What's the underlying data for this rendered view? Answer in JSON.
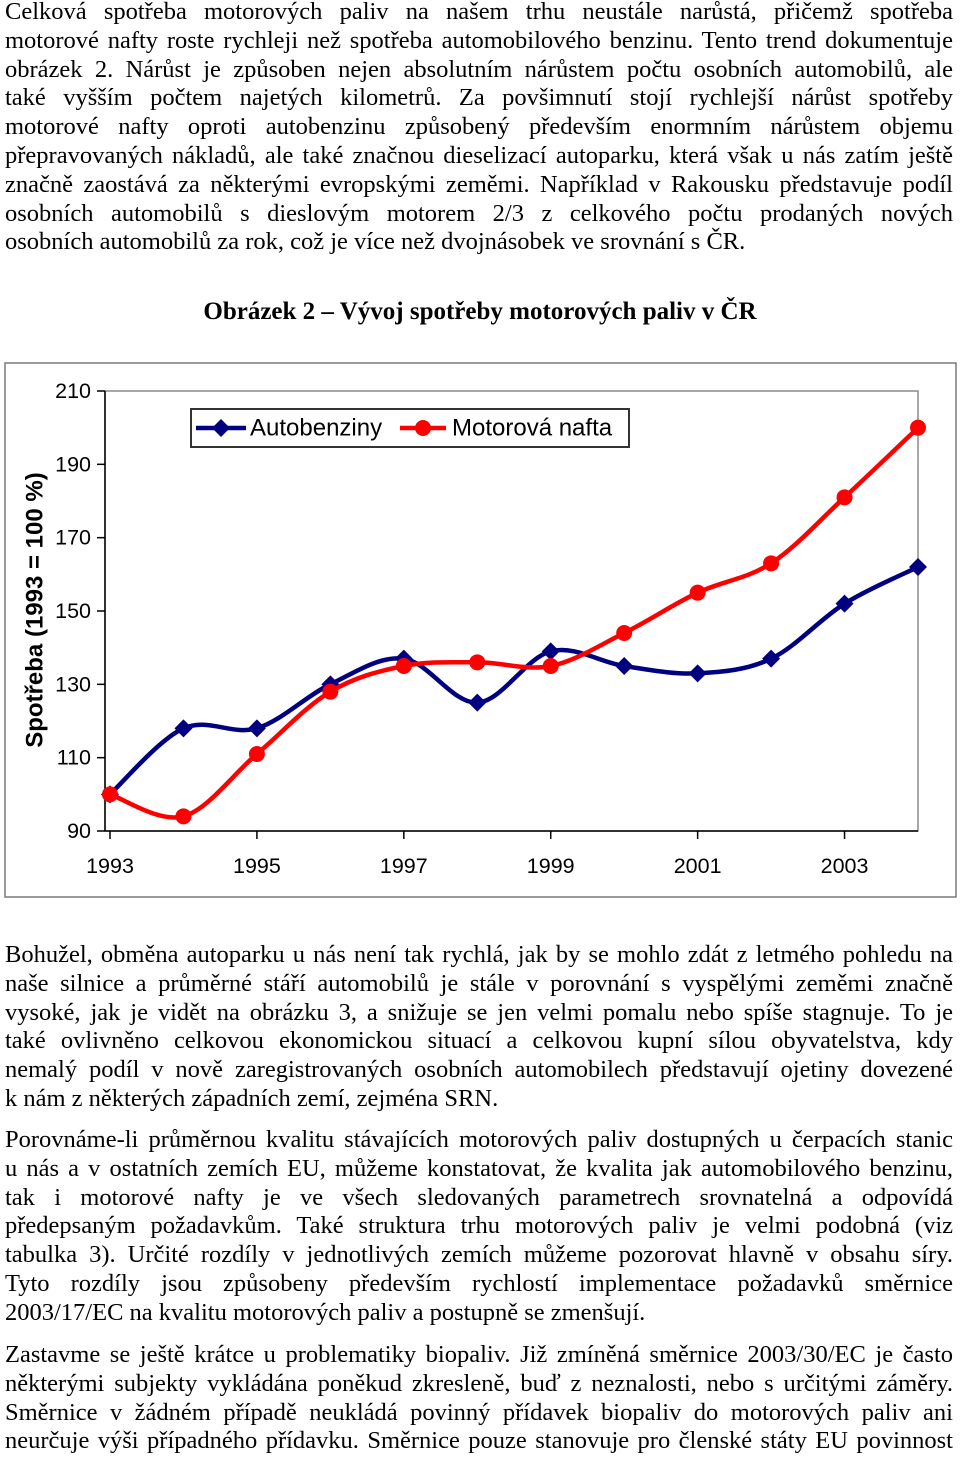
{
  "paragraphs": [
    {
      "lines": [
        "Celková spotřeba motorových paliv na našem trhu neustále narůstá, přičemž spotřeba",
        "motorové nafty roste rychleji než spotřeba automobilového benzinu. Tento trend dokumentuje",
        "obrázek 2. Nárůst je způsoben nejen absolutním nárůstem počtu osobních automobilů, ale",
        "také vyšším počtem najetých kilometrů. Za povšimnutí stojí rychlejší nárůst spotřeby",
        "motorové nafty oproti autobenzinu způsobený především enormním nárůstem objemu",
        "přepravovaných nákladů, ale také značnou dieselizací autoparku, která však u nás zatím ještě",
        "značně zaostává za některými evropskými zeměmi. Například v Rakousku představuje podíl",
        "osobních automobilů s dieslovým motorem 2/3 z celkového počtu prodaných nových",
        "osobních automobilů za rok, což je více než dvojnásobek ve srovnání s ČR."
      ]
    },
    {
      "lines": [
        "Bohužel, obměna autoparku u nás není tak rychlá, jak by se mohlo zdát z letmého pohledu na",
        "naše silnice a průměrné stáří automobilů je stále v porovnání s vyspělými zeměmi značně",
        "vysoké, jak je vidět na obrázku 3, a snižuje se jen velmi pomalu nebo spíše stagnuje. To je",
        "také ovlivněno celkovou ekonomickou situací a celkovou kupní sílou obyvatelstva, kdy",
        "nemalý podíl v nově zaregistrovaných osobních automobilech představují ojetiny dovezené",
        "k nám z některých západních zemí, zejména SRN."
      ]
    },
    {
      "lines": [
        "Porovnáme-li průměrnou kvalitu stávajících motorových paliv dostupných u čerpacích stanic",
        "u nás a v ostatních zemích EU, můžeme konstatovat, že kvalita jak automobilového benzinu,",
        "tak i motorové nafty je ve všech sledovaných parametrech srovnatelná a odpovídá",
        "předepsaným požadavkům. Také struktura trhu motorových paliv je velmi podobná (viz",
        "tabulka 3). Určité rozdíly v jednotlivých zemích můžeme pozorovat hlavně v obsahu síry.",
        "Tyto rozdíly jsou způsobeny především rychlostí implementace požadavků směrnice",
        "2003/17/EC na kvalitu motorových paliv a postupně se zmenšují."
      ]
    },
    {
      "lines": [
        "Zastavme se ještě krátce u problematiky biopaliv. Již zmíněná směrnice 2003/30/EC je často",
        "některými subjekty vykládána poněkud zkresleně, buď z neznalosti, nebo s určitými záměry.",
        "Směrnice v žádném případě neukládá povinný přídavek biopaliv do motorových paliv ani",
        "neurčuje výši případného přídavku. Směrnice pouze stanovuje pro členské státy EU povinnost"
      ]
    }
  ],
  "chart_data": {
    "type": "line",
    "title": "Obrázek 2 – Vývoj spotřeby motorových paliv v ČR",
    "ylabel": "Spotřeba (1993 = 100 %)",
    "x": [
      1993,
      1994,
      1995,
      1996,
      1997,
      1998,
      1999,
      2000,
      2001,
      2002,
      2003,
      2004
    ],
    "x_ticks": [
      1993,
      1995,
      1997,
      1999,
      2001,
      2003
    ],
    "y_ticks": [
      90,
      110,
      130,
      150,
      170,
      190,
      210
    ],
    "ylim": [
      90,
      210
    ],
    "series": [
      {
        "name": "Autobenziny",
        "color": "#000080",
        "marker": "diamond",
        "values": [
          100,
          118,
          118,
          130,
          137,
          125,
          139,
          135,
          133,
          137,
          152,
          162
        ]
      },
      {
        "name": "Motorová nafta",
        "color": "#ff0000",
        "marker": "circle",
        "values": [
          100,
          94,
          111,
          128,
          135,
          136,
          135,
          144,
          155,
          163,
          181,
          200
        ]
      }
    ],
    "smooth": true,
    "grid": false,
    "legend": "top-left"
  }
}
